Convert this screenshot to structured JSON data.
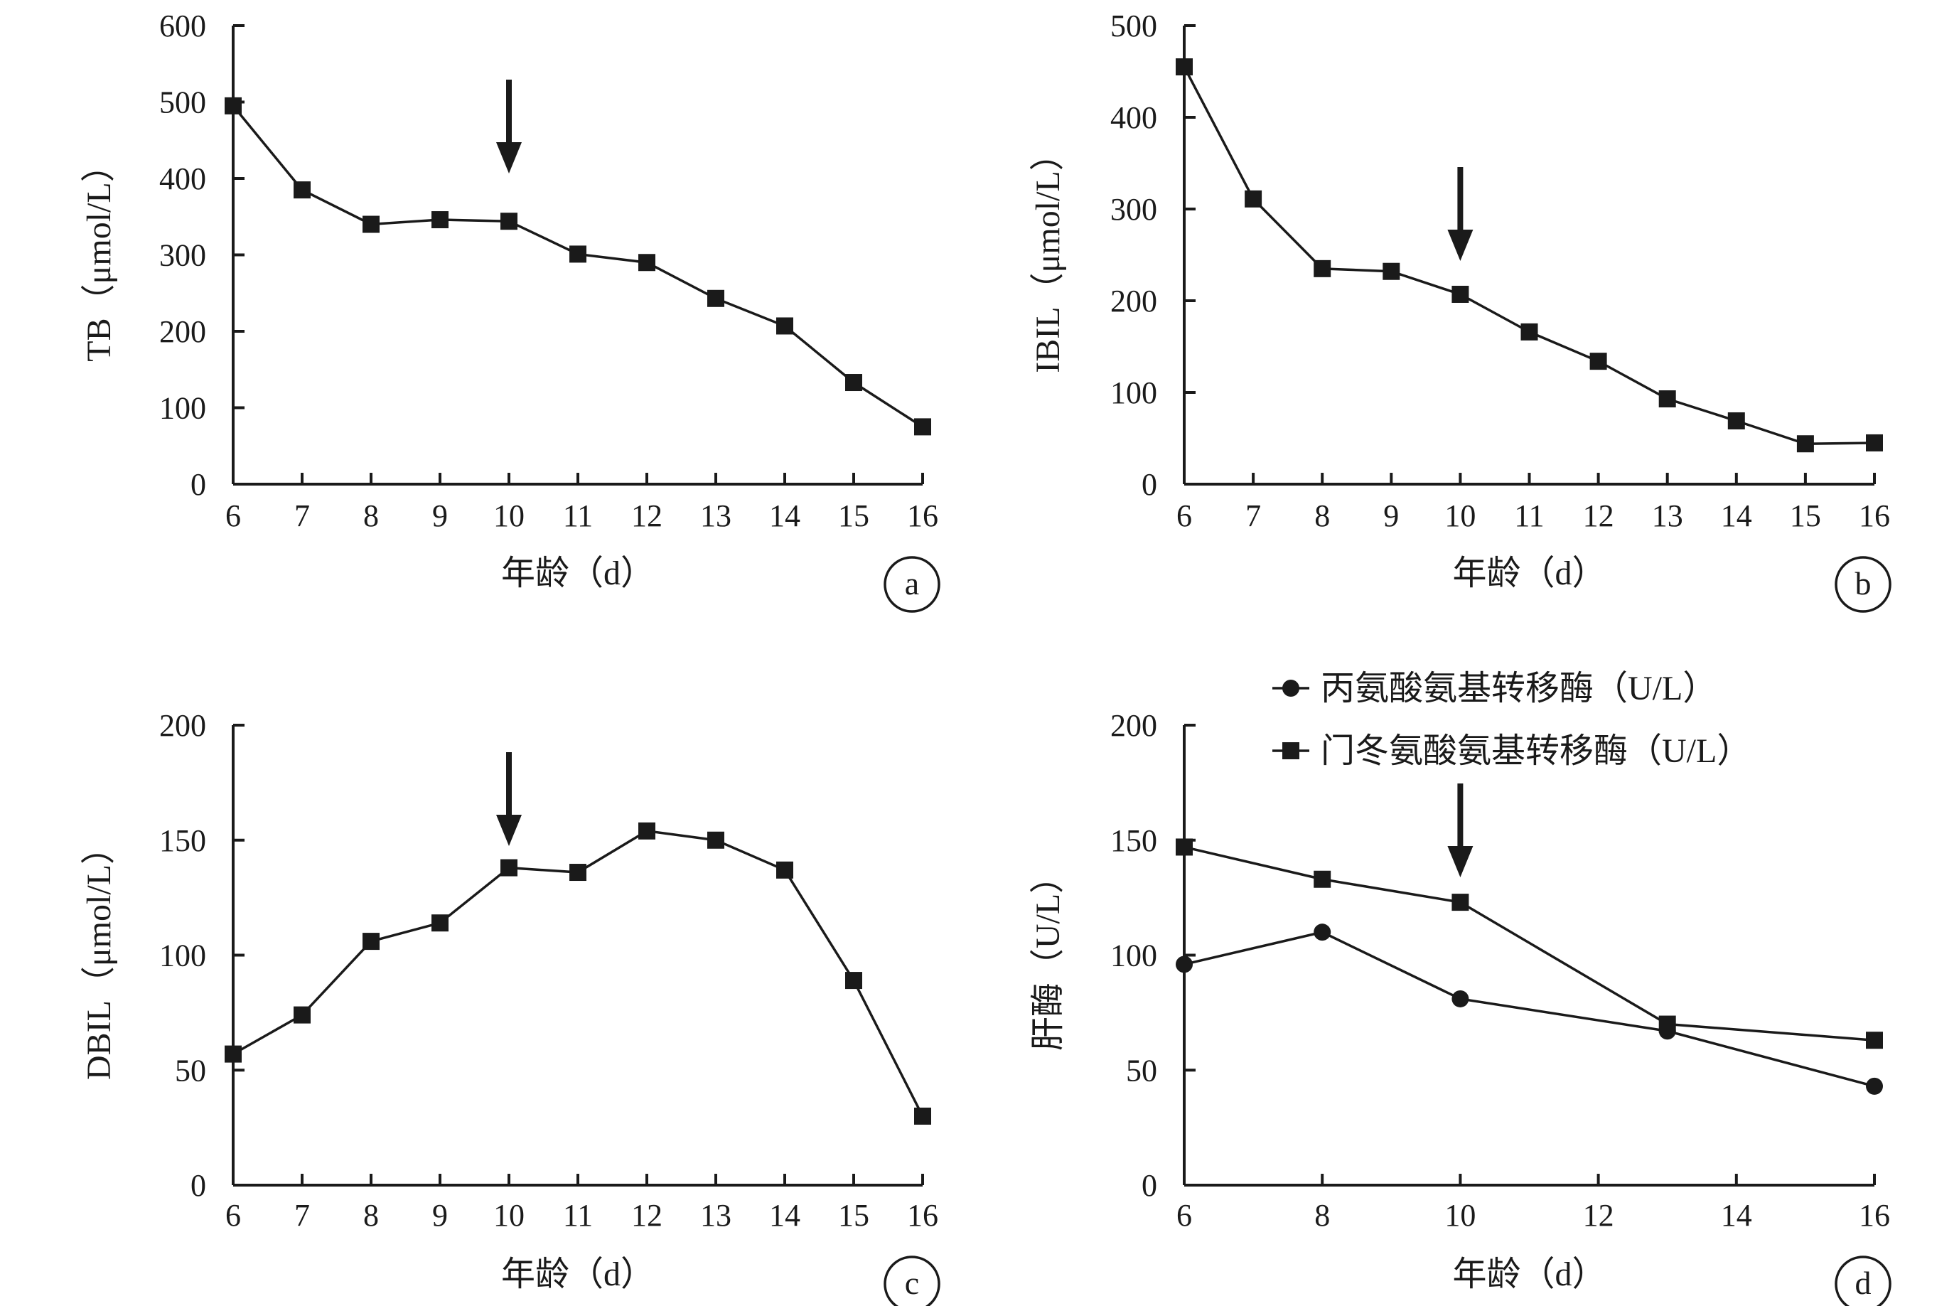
{
  "chart_data": [
    {
      "panel": "a",
      "type": "line",
      "xlabel": "年龄（d）",
      "ylabel": "TB（μmol/L）",
      "x": [
        6,
        7,
        8,
        9,
        10,
        11,
        12,
        13,
        14,
        15,
        16
      ],
      "xticks": [
        "6",
        "7",
        "8",
        "9",
        "10",
        "11",
        "12",
        "13",
        "14",
        "15",
        "16"
      ],
      "xlim": [
        6,
        16
      ],
      "yticks": [
        "0",
        "100",
        "200",
        "300",
        "400",
        "500",
        "600"
      ],
      "ylim": [
        0,
        600
      ],
      "series": [
        {
          "marker": "square",
          "values": [
            495,
            385,
            340,
            346,
            344,
            301,
            290,
            243,
            207,
            133,
            75
          ]
        }
      ],
      "annotation_arrow_x": 10,
      "grid": false
    },
    {
      "panel": "b",
      "type": "line",
      "xlabel": "年龄（d）",
      "ylabel": "IBIL（μmol/L）",
      "x": [
        6,
        7,
        8,
        9,
        10,
        11,
        12,
        13,
        14,
        15,
        16
      ],
      "xticks": [
        "6",
        "7",
        "8",
        "9",
        "10",
        "11",
        "12",
        "13",
        "14",
        "15",
        "16"
      ],
      "xlim": [
        6,
        16
      ],
      "yticks": [
        "0",
        "100",
        "200",
        "300",
        "400",
        "500"
      ],
      "ylim": [
        0,
        500
      ],
      "series": [
        {
          "marker": "square",
          "values": [
            455,
            311,
            235,
            232,
            207,
            166,
            134,
            93,
            69,
            44,
            45
          ]
        }
      ],
      "annotation_arrow_x": 10,
      "grid": false
    },
    {
      "panel": "c",
      "type": "line",
      "xlabel": "年龄（d）",
      "ylabel": "DBIL（μmol/L）",
      "x": [
        6,
        7,
        8,
        9,
        10,
        11,
        12,
        13,
        14,
        15,
        16
      ],
      "xticks": [
        "6",
        "7",
        "8",
        "9",
        "10",
        "11",
        "12",
        "13",
        "14",
        "15",
        "16"
      ],
      "xlim": [
        6,
        16
      ],
      "yticks": [
        "0",
        "50",
        "100",
        "150",
        "200"
      ],
      "ylim": [
        0,
        200
      ],
      "series": [
        {
          "marker": "square",
          "values": [
            57,
            74,
            106,
            114,
            138,
            136,
            154,
            150,
            137,
            89,
            30
          ]
        }
      ],
      "annotation_arrow_x": 10,
      "grid": false
    },
    {
      "panel": "d",
      "type": "line",
      "xlabel": "年龄（d）",
      "ylabel": "肝酶（U/L）",
      "xticks": [
        "6",
        "8",
        "10",
        "12",
        "14",
        "16"
      ],
      "xlim": [
        6,
        16
      ],
      "yticks": [
        "0",
        "50",
        "100",
        "150",
        "200"
      ],
      "ylim": [
        0,
        200
      ],
      "series": [
        {
          "name": "丙氨酸氨基转移酶（U/L）",
          "marker": "circle",
          "x": [
            6,
            8,
            10,
            13,
            16
          ],
          "values": [
            96,
            110,
            81,
            67,
            43
          ]
        },
        {
          "name": "门冬氨酸氨基转移酶（U/L）",
          "marker": "square",
          "x": [
            6,
            8,
            10,
            13,
            16
          ],
          "values": [
            147,
            133,
            123,
            70,
            63
          ]
        }
      ],
      "legend": "top",
      "annotation_arrow_x": 10,
      "grid": false
    }
  ]
}
